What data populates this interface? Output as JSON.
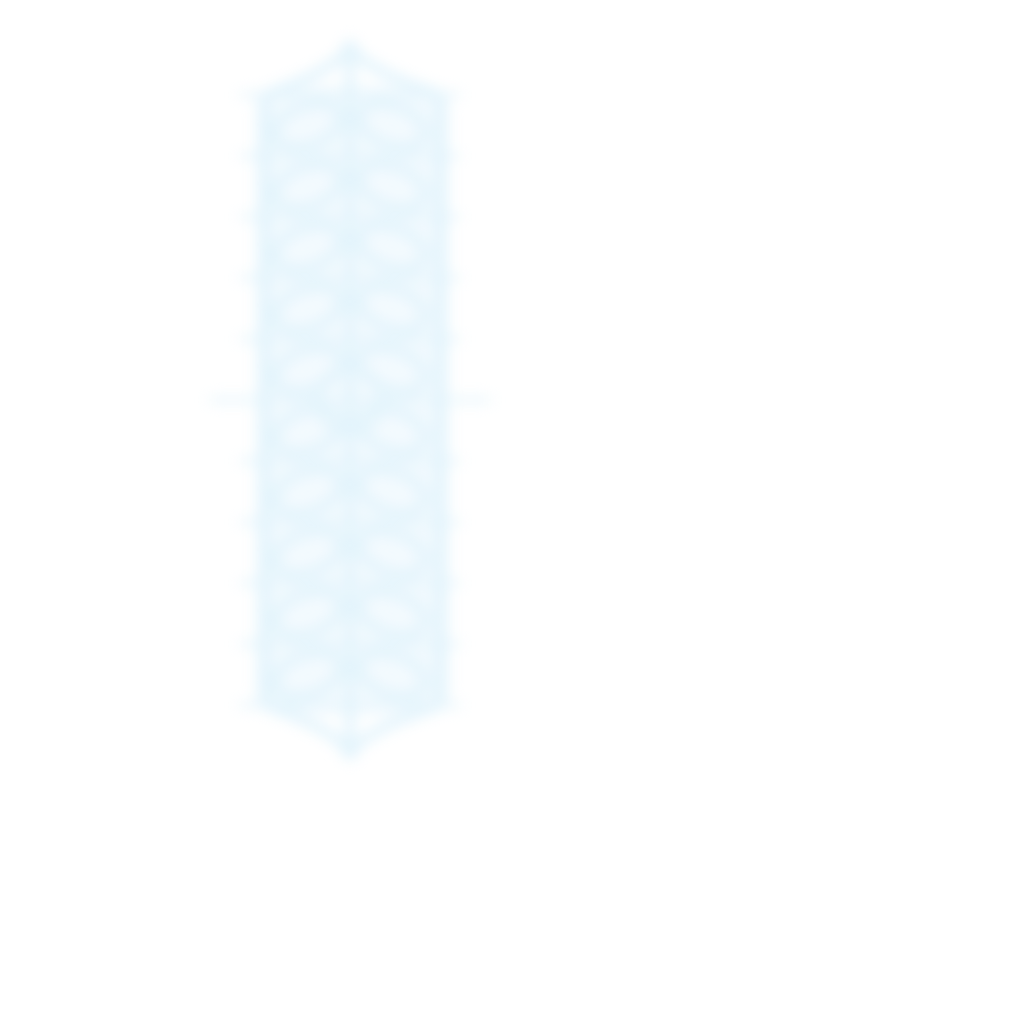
{
  "background_color": "#ffffff",
  "ornament": {
    "icon": "lattice-ornament-icon",
    "color": "#e3f4fc",
    "glow_color": "#eef8fd",
    "rows": 10
  }
}
